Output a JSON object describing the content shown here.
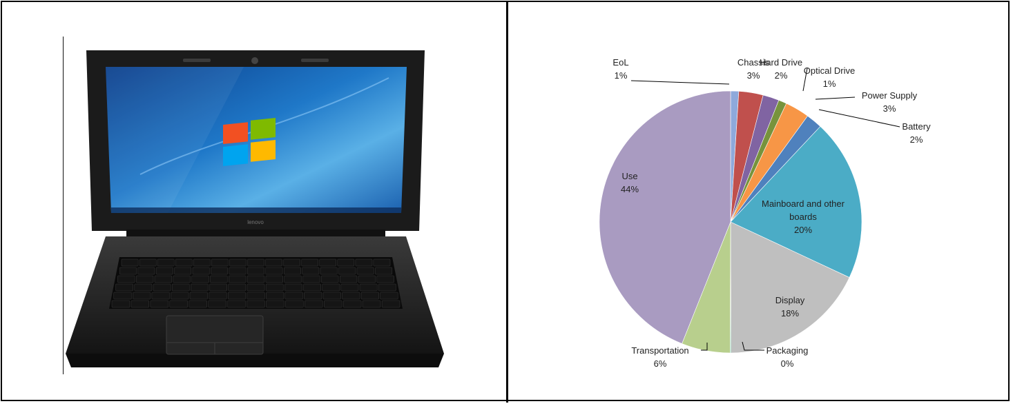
{
  "chart_data": {
    "type": "pie",
    "title": "",
    "slices": [
      {
        "label": "EoL",
        "value": 1,
        "pct_text": "1%",
        "color": "#8ea9db"
      },
      {
        "label": "Chassis",
        "value": 3,
        "pct_text": "3%",
        "color": "#c0504d"
      },
      {
        "label": "Hard Drive",
        "value": 2,
        "pct_text": "2%",
        "color": "#8064a2"
      },
      {
        "label": "Optical Drive",
        "value": 1,
        "pct_text": "1%",
        "color": "#77933c"
      },
      {
        "label": "Power Supply",
        "value": 3,
        "pct_text": "3%",
        "color": "#f79646"
      },
      {
        "label": "Battery",
        "value": 2,
        "pct_text": "2%",
        "color": "#4f81bd"
      },
      {
        "label": "Mainboard and other boards",
        "label_lines": [
          "Mainboard and other",
          "boards"
        ],
        "value": 20,
        "pct_text": "20%",
        "color": "#4bacc6"
      },
      {
        "label": "Display",
        "value": 18,
        "pct_text": "18%",
        "color": "#bfbfbf"
      },
      {
        "label": "Packaging",
        "value": 0,
        "pct_text": "0%",
        "color": "#1f9e6e"
      },
      {
        "label": "Transportation",
        "value": 6,
        "pct_text": "6%",
        "color": "#b8cf8d"
      },
      {
        "label": "Use",
        "value": 44,
        "pct_text": "44%",
        "color": "#a99bc1"
      }
    ]
  },
  "laptop": {
    "brand": "lenovo"
  }
}
